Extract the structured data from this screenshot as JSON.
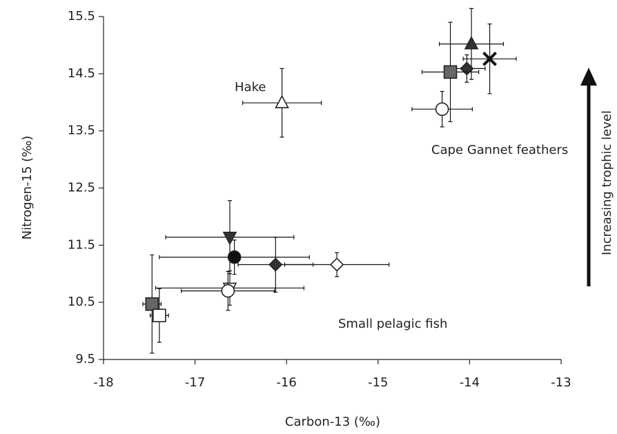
{
  "chart_data": {
    "type": "scatter",
    "x_label": "Carbon-13 (‰)",
    "y_label": "Nitrogen-15 (‰)",
    "annotations": [
      "Hake",
      "Cape Gannet feathers",
      "Small pelagic fish",
      "Increasing trophic level"
    ],
    "x": [
      -13.98,
      -13.78,
      -14.03,
      -14.21,
      -14.3,
      -16.05,
      -16.62,
      -16.57,
      -16.12,
      -15.45,
      -16.62,
      -16.64,
      -17.47,
      -17.39
    ],
    "values": [
      15.02,
      14.76,
      14.59,
      14.53,
      13.88,
      13.99,
      11.64,
      11.29,
      11.16,
      11.16,
      10.75,
      10.7,
      10.47,
      10.27
    ],
    "x_errors": [
      0.35,
      0.29,
      0.2,
      0.31,
      0.33,
      0.43,
      0.7,
      0.82,
      0.41,
      0.57,
      0.81,
      0.51,
      0.1,
      0.1
    ],
    "errors": [
      0.62,
      0.61,
      0.24,
      0.87,
      0.31,
      0.6,
      0.64,
      0.3,
      0.48,
      0.21,
      0.3,
      0.34,
      0.86,
      0.47
    ],
    "markers": [
      "triangle-up",
      "x",
      "diamond",
      "square",
      "circle",
      "triangle-up",
      "triangle-down",
      "circle",
      "diamond",
      "diamond",
      "triangle-down",
      "circle",
      "square",
      "square"
    ],
    "fills": [
      "#333333",
      "#111111",
      "#333333",
      "#666666",
      "#ffffff",
      "#ffffff",
      "#333333",
      "#111111",
      "#333333",
      "#ffffff",
      "#ffffff",
      "#ffffff",
      "#666666",
      "#ffffff"
    ],
    "xlim": [
      -18,
      -13
    ],
    "xticks": [
      -18,
      -17,
      -16,
      -15,
      -14,
      -13
    ],
    "ylim": [
      9.5,
      15.5
    ],
    "yticks": [
      9.5,
      10.5,
      11.5,
      12.5,
      13.5,
      14.5,
      15.5
    ]
  }
}
